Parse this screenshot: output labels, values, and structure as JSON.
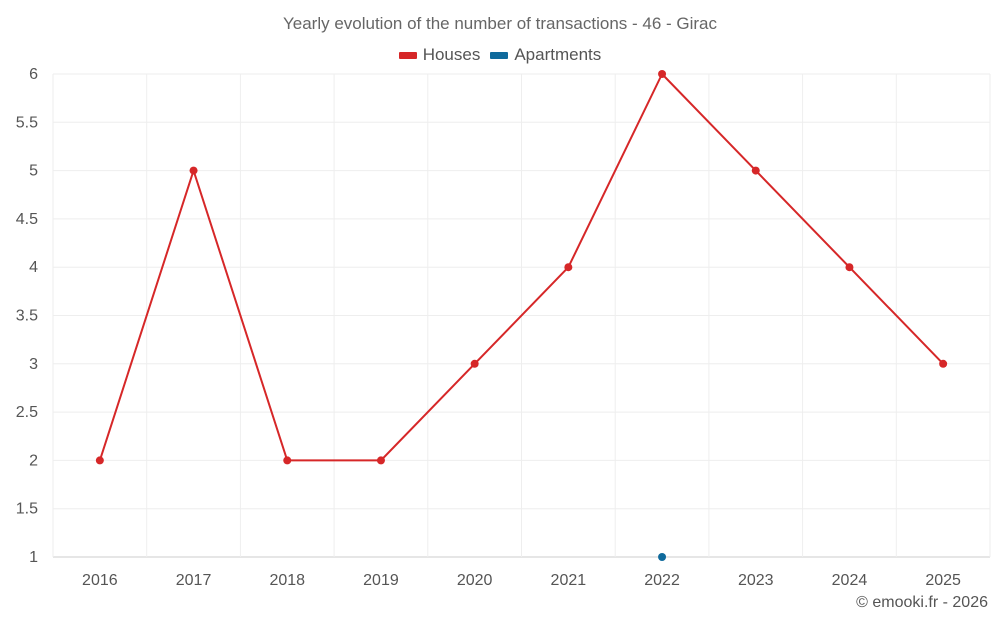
{
  "chart_data": {
    "type": "line",
    "title": "Yearly evolution of the number of transactions - 46 - Girac",
    "categories": [
      "2016",
      "2017",
      "2018",
      "2019",
      "2020",
      "2021",
      "2022",
      "2023",
      "2024",
      "2025"
    ],
    "series": [
      {
        "name": "Houses",
        "color": "#d62728",
        "values": [
          2,
          5,
          2,
          2,
          3,
          4,
          6,
          5,
          4,
          3
        ]
      },
      {
        "name": "Apartments",
        "color": "#0f6a9c",
        "values": [
          null,
          null,
          null,
          null,
          null,
          null,
          1,
          null,
          null,
          null
        ]
      }
    ],
    "ylim": [
      1,
      6
    ],
    "yticks": [
      "1",
      "1.5",
      "2",
      "2.5",
      "3",
      "3.5",
      "4",
      "4.5",
      "5",
      "5.5",
      "6"
    ],
    "xlabel": "",
    "ylabel": "",
    "grid": true,
    "legend_position": "top-center"
  },
  "credit": "© emooki.fr - 2026"
}
